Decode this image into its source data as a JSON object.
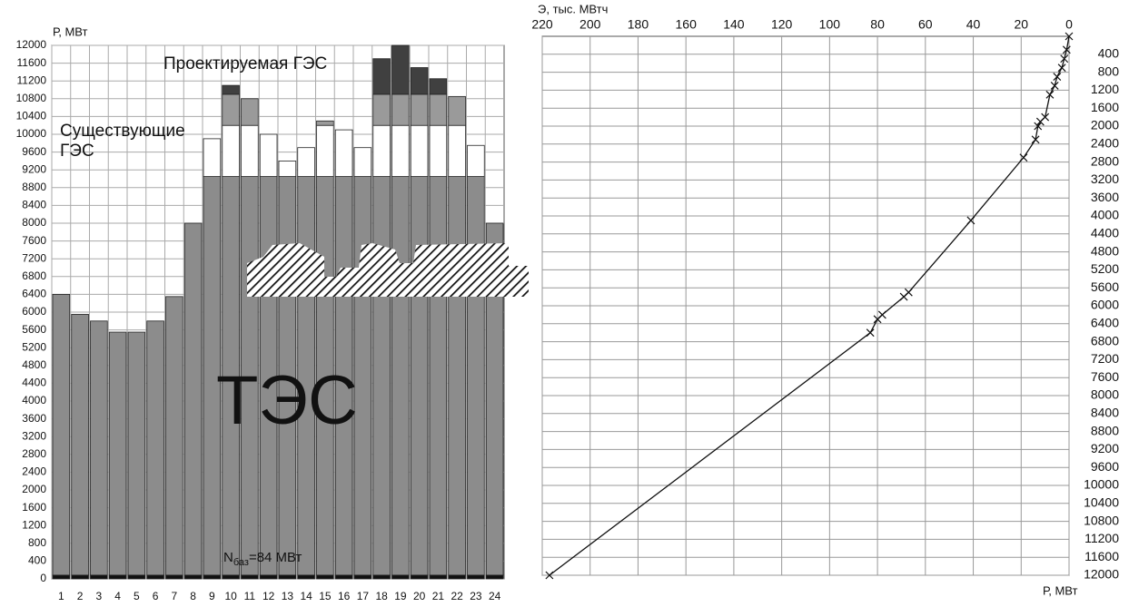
{
  "chart_data": [
    {
      "type": "bar",
      "stacked": true,
      "y_label": "Р, МВт",
      "categories": [
        "1",
        "2",
        "3",
        "4",
        "5",
        "6",
        "7",
        "8",
        "9",
        "10",
        "11",
        "12",
        "13",
        "14",
        "15",
        "16",
        "17",
        "18",
        "19",
        "20",
        "21",
        "22",
        "23",
        "24"
      ],
      "ylim": [
        0,
        12000
      ],
      "yticks": [
        0,
        400,
        800,
        1200,
        1600,
        2000,
        2400,
        2800,
        3200,
        3600,
        4000,
        4400,
        4800,
        5200,
        5600,
        6000,
        6400,
        6800,
        7200,
        7600,
        8000,
        8400,
        8800,
        9200,
        9600,
        10000,
        10400,
        10800,
        11200,
        11600,
        12000
      ],
      "grid": true,
      "base_label": {
        "symbol": "N",
        "subscript": "баз",
        "rest": "=84 МВт"
      },
      "series": [
        {
          "color": "#111111",
          "values": [
            84,
            84,
            84,
            84,
            84,
            84,
            84,
            84,
            84,
            84,
            84,
            84,
            84,
            84,
            84,
            84,
            84,
            84,
            84,
            84,
            84,
            84,
            84,
            84
          ]
        },
        {
          "name": "ТЭС",
          "color": "#8c8c8c",
          "values": [
            6316,
            5866,
            5716,
            5466,
            5466,
            5716,
            6266,
            7916,
            8966,
            8966,
            8966,
            8966,
            8966,
            8966,
            8966,
            8966,
            8966,
            8966,
            8966,
            8966,
            8966,
            8966,
            8966,
            7916
          ]
        },
        {
          "name": "Существующие ГЭС",
          "color": "#ffffff",
          "values": [
            0,
            0,
            0,
            0,
            0,
            0,
            0,
            0,
            850,
            1150,
            1150,
            950,
            350,
            650,
            1150,
            1050,
            650,
            1150,
            1150,
            1150,
            1150,
            1150,
            700,
            0
          ]
        },
        {
          "name": "Проектируемая ГЭС",
          "color": "#9a9a9a",
          "values": [
            0,
            0,
            0,
            0,
            0,
            0,
            0,
            0,
            0,
            700,
            600,
            0,
            0,
            0,
            100,
            0,
            0,
            700,
            700,
            700,
            700,
            650,
            0,
            0
          ]
        },
        {
          "color": "#404040",
          "values": [
            0,
            0,
            0,
            0,
            0,
            0,
            0,
            0,
            0,
            200,
            0,
            0,
            0,
            0,
            0,
            0,
            0,
            800,
            1100,
            600,
            350,
            0,
            0,
            0
          ]
        }
      ]
    },
    {
      "type": "line",
      "x_label": "Э, тыс. МВтч",
      "y_label": "Р, МВт",
      "xlim": [
        220,
        0
      ],
      "xticks": [
        220,
        200,
        180,
        160,
        140,
        120,
        100,
        80,
        60,
        40,
        20,
        0
      ],
      "ylim": [
        12000,
        0
      ],
      "yticks": [
        400,
        800,
        1200,
        1600,
        2000,
        2400,
        2800,
        3200,
        3600,
        4000,
        4400,
        4800,
        5200,
        5600,
        6000,
        6400,
        6800,
        7200,
        7600,
        8000,
        8400,
        8800,
        9200,
        9600,
        10000,
        10400,
        10800,
        11200,
        11600,
        12000
      ],
      "grid": true,
      "color": "#111111",
      "x": [
        0,
        1,
        2,
        3,
        5,
        6,
        8,
        10,
        12,
        13,
        14,
        19,
        41,
        67,
        69,
        78,
        80,
        83,
        217
      ],
      "values": [
        0,
        300,
        500,
        700,
        900,
        1100,
        1300,
        1800,
        1900,
        2000,
        2300,
        2700,
        4100,
        5700,
        5800,
        6200,
        6300,
        6600,
        12000
      ]
    }
  ]
}
